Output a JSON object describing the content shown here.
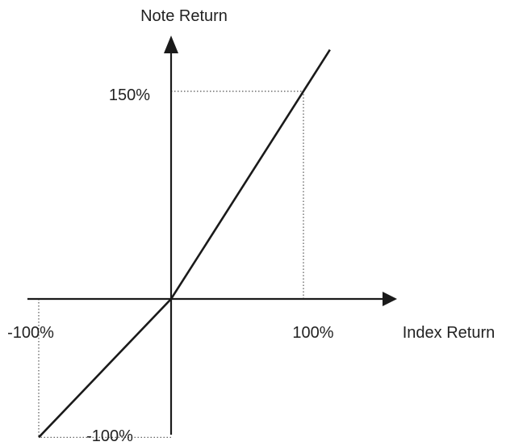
{
  "chart_data": {
    "type": "line",
    "title": "",
    "xlabel": "Index Return",
    "ylabel": "Note Return",
    "xlim": [
      -100,
      120
    ],
    "ylim": [
      -100,
      180
    ],
    "grid": false,
    "legend": "none",
    "x_unit": "%",
    "y_unit": "%",
    "series": [
      {
        "x": [
          -100,
          0,
          120
        ],
        "y": [
          -100,
          0,
          180
        ]
      }
    ],
    "reference_points": [
      {
        "x": 100,
        "y": 150
      },
      {
        "x": -100,
        "y": -100
      }
    ],
    "tick_labels": {
      "x_positive": "100%",
      "x_negative": "-100%",
      "y_positive": "150%",
      "y_negative": "-100%"
    },
    "colors": {
      "line": "#1a1a1a",
      "axis": "#1a1a1a",
      "guide": "#555555",
      "text": "#222222"
    }
  }
}
